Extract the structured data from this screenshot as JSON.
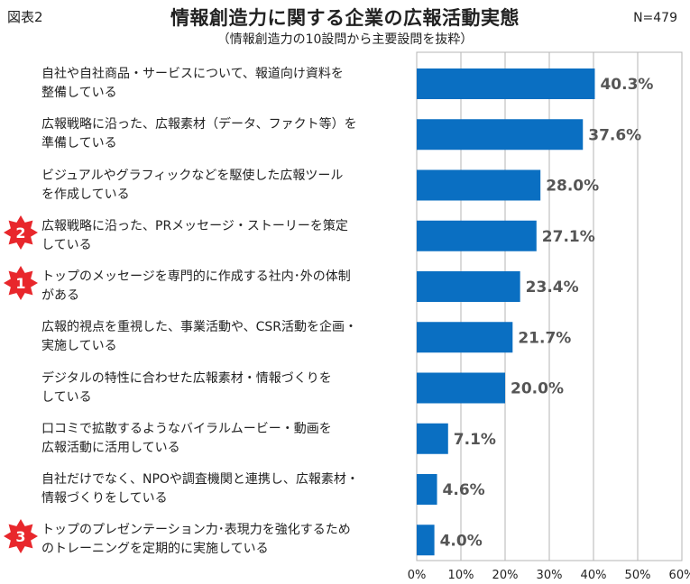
{
  "figure_label": "図表2",
  "sample_size": "N=479",
  "colors": {
    "bar": "#0a6fc2",
    "grid": "#b4b4b4",
    "badge": "#e8272c"
  },
  "chart_data": {
    "type": "bar",
    "orientation": "horizontal",
    "title": "情報創造力に関する企業の広報活動実態",
    "subtitle": "（情報創造力の10設問から主要設問を抜粋）",
    "xlim": [
      0,
      60
    ],
    "x_ticks": [
      "0%",
      "10%",
      "20%",
      "30%",
      "40%",
      "50%",
      "60%"
    ],
    "grid": true,
    "categories": [
      {
        "lines": [
          "自社や自社商品・サービスについて、報道向け資料を",
          "整備している"
        ],
        "value": 40.3,
        "value_label": "40.3%",
        "badge": ""
      },
      {
        "lines": [
          "広報戦略に沿った、広報素材（データ、ファクト等）を",
          "準備している"
        ],
        "value": 37.6,
        "value_label": "37.6%",
        "badge": ""
      },
      {
        "lines": [
          "ビジュアルやグラフィックなどを駆使した広報ツール",
          "を作成している"
        ],
        "value": 28.0,
        "value_label": "28.0%",
        "badge": ""
      },
      {
        "lines": [
          "広報戦略に沿った、PRメッセージ・ストーリーを策定",
          "している"
        ],
        "value": 27.1,
        "value_label": "27.1%",
        "badge": "2"
      },
      {
        "lines": [
          "トップのメッセージを専門的に作成する社内･外の体制",
          "がある"
        ],
        "value": 23.4,
        "value_label": "23.4%",
        "badge": "1"
      },
      {
        "lines": [
          "広報的視点を重視した、事業活動や、CSR活動を企画・",
          "実施している"
        ],
        "value": 21.7,
        "value_label": "21.7%",
        "badge": ""
      },
      {
        "lines": [
          "デジタルの特性に合わせた広報素材・情報づくりを",
          "している"
        ],
        "value": 20.0,
        "value_label": "20.0%",
        "badge": ""
      },
      {
        "lines": [
          "口コミで拡散するようなバイラルムービー・動画を",
          "広報活動に活用している"
        ],
        "value": 7.1,
        "value_label": "7.1%",
        "badge": ""
      },
      {
        "lines": [
          "自社だけでなく、NPOや調査機関と連携し、広報素材・",
          "情報づくりをしている"
        ],
        "value": 4.6,
        "value_label": "4.6%",
        "badge": ""
      },
      {
        "lines": [
          "トップのプレゼンテーション力･表現力を強化するため",
          "のトレーニングを定期的に実施している"
        ],
        "value": 4.0,
        "value_label": "4.0%",
        "badge": "3"
      }
    ]
  }
}
